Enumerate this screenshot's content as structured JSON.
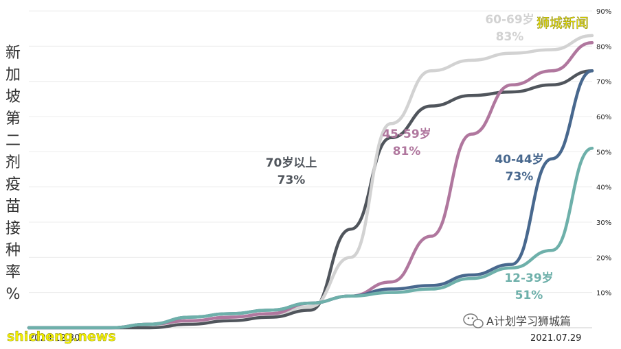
{
  "chart_data": {
    "type": "line",
    "ylabel": "新加坡第二剂疫苗接种率%",
    "x_start_label": "2020.12.30",
    "x_end_label": "2021.07.29",
    "x": [
      "2020-12-30",
      "2021-01-15",
      "2021-02-01",
      "2021-02-15",
      "2021-03-01",
      "2021-03-15",
      "2021-04-01",
      "2021-04-15",
      "2021-05-01",
      "2021-05-15",
      "2021-06-01",
      "2021-06-15",
      "2021-07-01",
      "2021-07-15",
      "2021-07-29"
    ],
    "yticks": [
      "10%",
      "20%",
      "30%",
      "40%",
      "50%",
      "60%",
      "70%",
      "80%",
      "90%"
    ],
    "ylim": [
      0,
      90
    ],
    "grid": true,
    "series": [
      {
        "name": "70岁以上",
        "color": "#50555c",
        "label_line1": "70岁以上",
        "label_line2": "73%",
        "values": [
          0,
          0,
          0,
          0,
          1,
          2,
          3,
          5,
          28,
          54,
          63,
          66,
          67,
          69,
          73
        ]
      },
      {
        "name": "60-69岁",
        "color": "#d2d2d2",
        "label_line1": "60-69岁",
        "label_line2": "83%",
        "values": [
          0,
          0,
          0,
          1,
          2,
          3,
          4,
          6,
          20,
          58,
          73,
          76,
          78,
          79,
          83
        ]
      },
      {
        "name": "45-59岁",
        "color": "#b0779e",
        "label_line1": "45-59岁",
        "label_line2": "81%",
        "values": [
          0,
          0,
          0,
          1,
          2,
          3,
          4,
          7,
          9,
          13,
          26,
          55,
          69,
          73,
          81
        ]
      },
      {
        "name": "40-44岁",
        "color": "#48688e",
        "label_line1": "40-44岁",
        "label_line2": "73%",
        "values": [
          0,
          0,
          0,
          1,
          3,
          4,
          5,
          7,
          9,
          11,
          12,
          15,
          18,
          48,
          73
        ]
      },
      {
        "name": "12-39岁",
        "color": "#6eb0aa",
        "label_line1": "12-39岁",
        "label_line2": "51%",
        "values": [
          0,
          0,
          0,
          1,
          3,
          4,
          5,
          7,
          9,
          10,
          11,
          14,
          17,
          22,
          51
        ]
      }
    ]
  },
  "watermarks": {
    "brand_cn": "狮城新闻",
    "brand_en": "shicheng.news",
    "wechat_text": "A计划学习狮城篇"
  },
  "icons": {
    "wechat": "wechat-icon"
  }
}
